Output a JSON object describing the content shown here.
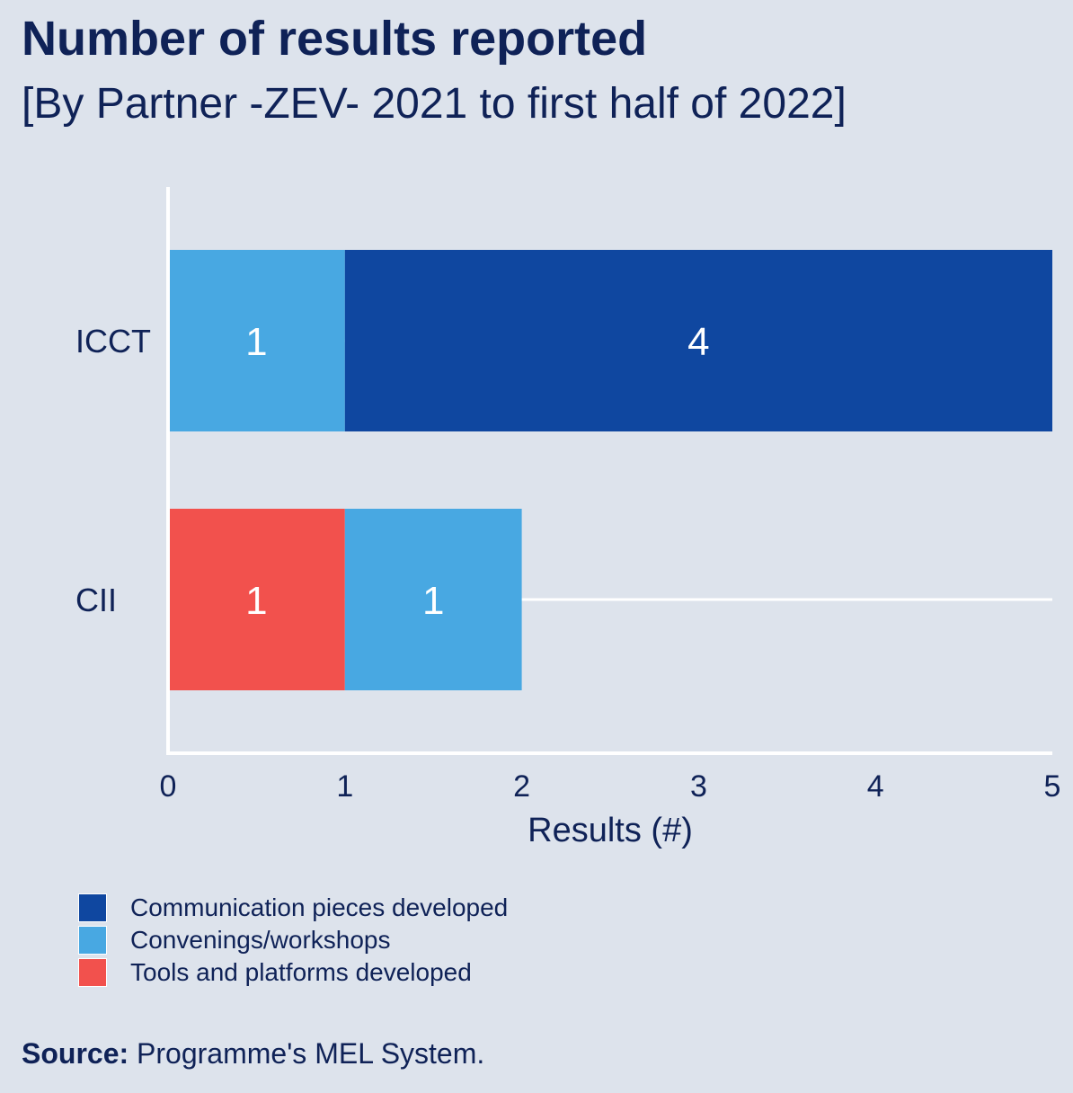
{
  "title": "Number of results reported",
  "subtitle": "[By Partner -ZEV-  2021 to first half of 2022]",
  "source": {
    "label": "Source:",
    "text": "Programme's MEL System."
  },
  "colors": {
    "background": "#dde3ec",
    "communication": "#0f47a0",
    "convenings": "#48a8e2",
    "tools": "#f2514d",
    "axis": "#ffffff",
    "text": "#0f2257"
  },
  "legend": [
    {
      "label": "Communication pieces developed",
      "color": "#0f47a0"
    },
    {
      "label": "Convenings/workshops",
      "color": "#48a8e2"
    },
    {
      "label": "Tools and platforms developed",
      "color": "#f2514d"
    }
  ],
  "chart_data": {
    "type": "bar",
    "orientation": "horizontal",
    "stacked": true,
    "categories": [
      "ICCT",
      "CII"
    ],
    "series": [
      {
        "name": "Tools and platforms developed",
        "color": "#f2514d",
        "values": [
          0,
          1
        ]
      },
      {
        "name": "Convenings/workshops",
        "color": "#48a8e2",
        "values": [
          1,
          1
        ]
      },
      {
        "name": "Communication pieces developed",
        "color": "#0f47a0",
        "values": [
          4,
          0
        ]
      }
    ],
    "xlabel": "Results (#)",
    "ylabel": "",
    "xlim": [
      0,
      5
    ],
    "xticks": [
      "0",
      "1",
      "2",
      "3",
      "4",
      "5"
    ],
    "grid": false,
    "legend_position": "bottom-left"
  }
}
